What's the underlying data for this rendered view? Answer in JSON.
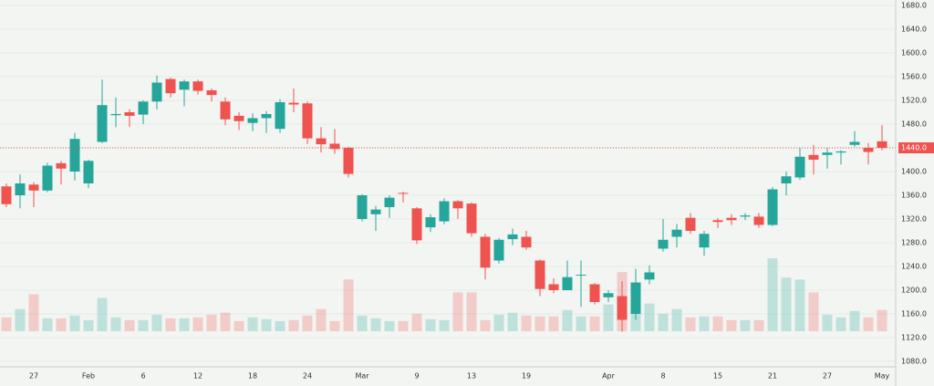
{
  "chart_data": {
    "type": "candlestick",
    "up_color": "#26a69a",
    "down_color": "#ef5350",
    "grid": true,
    "categories": [
      null,
      null,
      "27",
      null,
      null,
      null,
      "Feb",
      null,
      null,
      null,
      "6",
      null,
      null,
      null,
      "12",
      null,
      null,
      null,
      "18",
      null,
      null,
      null,
      "24",
      null,
      null,
      null,
      "Mar",
      null,
      null,
      null,
      "9",
      null,
      null,
      null,
      "13",
      null,
      null,
      null,
      "19",
      null,
      null,
      null,
      null,
      null,
      "Apr",
      null,
      null,
      null,
      "8",
      null,
      null,
      null,
      "15",
      null,
      null,
      null,
      "21",
      null,
      null,
      null,
      "27",
      null,
      null,
      null,
      "May"
    ],
    "open": [
      1375,
      1360,
      1378,
      1368,
      1414,
      1400,
      1380,
      1450,
      1495,
      1500,
      1496,
      1518,
      1556,
      1538,
      1552,
      1537,
      1518,
      1494,
      1482,
      1490,
      1472,
      1516,
      1515,
      1456,
      1447,
      1440,
      1320,
      1328,
      1340,
      1364,
      1338,
      1306,
      1316,
      1350,
      1346,
      1290,
      1250,
      1286,
      1290,
      1250,
      1210,
      1200,
      1225,
      1210,
      1188,
      1190,
      1160,
      1218,
      1270,
      1290,
      1322,
      1272,
      1318,
      1322,
      1324,
      1324,
      1310,
      1380,
      1390,
      1428,
      1428,
      1432,
      1445,
      1440,
      1451
    ],
    "high": [
      1380,
      1395,
      1382,
      1415,
      1418,
      1465,
      1420,
      1555,
      1525,
      1505,
      1520,
      1562,
      1558,
      1555,
      1555,
      1540,
      1525,
      1500,
      1498,
      1502,
      1522,
      1540,
      1518,
      1475,
      1472,
      1442,
      1362,
      1342,
      1360,
      1366,
      1340,
      1328,
      1355,
      1352,
      1348,
      1295,
      1288,
      1304,
      1300,
      1252,
      1220,
      1250,
      1250,
      1212,
      1200,
      1215,
      1236,
      1242,
      1320,
      1312,
      1330,
      1300,
      1322,
      1328,
      1330,
      1330,
      1374,
      1400,
      1440,
      1445,
      1440,
      1436,
      1468,
      1448,
      1478
    ],
    "low": [
      1340,
      1338,
      1340,
      1365,
      1378,
      1385,
      1372,
      1448,
      1475,
      1475,
      1480,
      1505,
      1525,
      1510,
      1530,
      1518,
      1478,
      1470,
      1468,
      1465,
      1465,
      1500,
      1446,
      1432,
      1430,
      1390,
      1316,
      1300,
      1322,
      1348,
      1278,
      1298,
      1311,
      1320,
      1290,
      1218,
      1245,
      1276,
      1268,
      1190,
      1195,
      1200,
      1172,
      1176,
      1180,
      1130,
      1150,
      1210,
      1265,
      1272,
      1295,
      1258,
      1305,
      1310,
      1318,
      1305,
      1308,
      1360,
      1386,
      1395,
      1405,
      1412,
      1442,
      1412,
      1436
    ],
    "close": [
      1345,
      1380,
      1368,
      1410,
      1405,
      1455,
      1418,
      1512,
      1497,
      1494,
      1518,
      1550,
      1532,
      1552,
      1536,
      1529,
      1488,
      1485,
      1490,
      1497,
      1517,
      1513,
      1456,
      1446,
      1438,
      1396,
      1360,
      1336,
      1356,
      1363,
      1284,
      1323,
      1350,
      1338,
      1296,
      1238,
      1285,
      1294,
      1272,
      1202,
      1200,
      1222,
      1226,
      1180,
      1195,
      1150,
      1213,
      1230,
      1285,
      1302,
      1300,
      1295,
      1315,
      1318,
      1326,
      1310,
      1370,
      1392,
      1425,
      1420,
      1432,
      1434,
      1450,
      1433,
      1440
    ],
    "volume": [
      15,
      24,
      40,
      14,
      14,
      17,
      12,
      36,
      15,
      12,
      12,
      18,
      14,
      14,
      15,
      18,
      20,
      11,
      15,
      13,
      11,
      12,
      17,
      24,
      11,
      56,
      17,
      14,
      11,
      11,
      19,
      13,
      12,
      42,
      42,
      12,
      18,
      20,
      17,
      16,
      16,
      23,
      16,
      16,
      29,
      64,
      27,
      30,
      19,
      24,
      15,
      16,
      16,
      12,
      12,
      12,
      79,
      58,
      56,
      42,
      18,
      15,
      22,
      15,
      23
    ],
    "ylim": [
      1070,
      1690
    ],
    "yticks": [
      {
        "value": 1080,
        "label": "1080.0"
      },
      {
        "value": 1120,
        "label": "1120.0"
      },
      {
        "value": 1160,
        "label": "1160.0"
      },
      {
        "value": 1200,
        "label": "1200.0"
      },
      {
        "value": 1240,
        "label": "1240.0"
      },
      {
        "value": 1280,
        "label": "1280.0"
      },
      {
        "value": 1320,
        "label": "1320.0"
      },
      {
        "value": 1360,
        "label": "1360.0"
      },
      {
        "value": 1400,
        "label": "1400.0"
      },
      {
        "value": 1440,
        "label": "1440.0"
      },
      {
        "value": 1480,
        "label": "1480.0"
      },
      {
        "value": 1520,
        "label": "1520.0"
      },
      {
        "value": 1560,
        "label": "1560.0"
      },
      {
        "value": 1600,
        "label": "1600.0"
      },
      {
        "value": 1640,
        "label": "1640.0"
      },
      {
        "value": 1680,
        "label": "1680.0"
      }
    ],
    "last_price": {
      "value": 1440,
      "label": "1440.0"
    }
  }
}
